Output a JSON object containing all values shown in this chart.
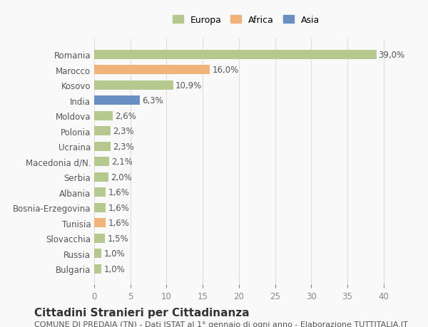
{
  "countries": [
    "Romania",
    "Marocco",
    "Kosovo",
    "India",
    "Moldova",
    "Polonia",
    "Ucraina",
    "Macedonia d/N.",
    "Serbia",
    "Albania",
    "Bosnia-Erzegovina",
    "Tunisia",
    "Slovacchia",
    "Russia",
    "Bulgaria"
  ],
  "values": [
    39.0,
    16.0,
    10.9,
    6.3,
    2.6,
    2.3,
    2.3,
    2.1,
    2.0,
    1.6,
    1.6,
    1.6,
    1.5,
    1.0,
    1.0
  ],
  "labels": [
    "39,0%",
    "16,0%",
    "10,9%",
    "6,3%",
    "2,6%",
    "2,3%",
    "2,3%",
    "2,1%",
    "2,0%",
    "1,6%",
    "1,6%",
    "1,6%",
    "1,5%",
    "1,0%",
    "1,0%"
  ],
  "colors": [
    "#b5c98e",
    "#f0b47a",
    "#b5c98e",
    "#6a8fc2",
    "#b5c98e",
    "#b5c98e",
    "#b5c98e",
    "#b5c98e",
    "#b5c98e",
    "#b5c98e",
    "#b5c98e",
    "#f0b47a",
    "#b5c98e",
    "#b5c98e",
    "#b5c98e"
  ],
  "legend": [
    {
      "label": "Europa",
      "color": "#b5c98e"
    },
    {
      "label": "Africa",
      "color": "#f0b47a"
    },
    {
      "label": "Asia",
      "color": "#6a8fc2"
    }
  ],
  "xlim": [
    0,
    42
  ],
  "xticks": [
    0,
    5,
    10,
    15,
    20,
    25,
    30,
    35,
    40
  ],
  "title": "Cittadini Stranieri per Cittadinanza",
  "subtitle": "COMUNE DI PREDAIA (TN) - Dati ISTAT al 1° gennaio di ogni anno - Elaborazione TUTTITALIA.IT",
  "background_color": "#f9f9f9",
  "grid_color": "#dddddd",
  "bar_height": 0.6,
  "label_fontsize": 8.5,
  "tick_fontsize": 8.5,
  "title_fontsize": 11,
  "subtitle_fontsize": 8
}
